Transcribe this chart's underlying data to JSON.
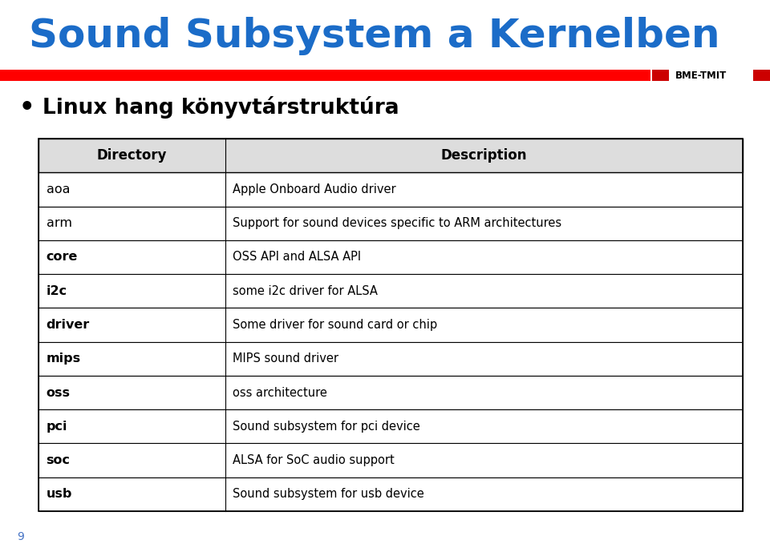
{
  "title": "Sound Subsystem a Kernelben",
  "title_color": "#1B6CC8",
  "subtitle": "Linux hang könyvtárstruktúra",
  "red_bar_color": "#FF0000",
  "bme_tmit_text": "BME-TMIT",
  "bme_tmit_color": "#000000",
  "bme_tmit_sq_color": "#CC0000",
  "page_number": "9",
  "page_number_color": "#4472C4",
  "table_header": [
    "Directory",
    "Description"
  ],
  "table_rows": [
    [
      "aoa",
      "Apple Onboard Audio driver"
    ],
    [
      "arm",
      "Support for sound devices specific to ARM architectures"
    ],
    [
      "core",
      "OSS API and ALSA API"
    ],
    [
      "i2c",
      "some i2c driver for ALSA"
    ],
    [
      "driver",
      "Some driver for sound card or chip"
    ],
    [
      "mips",
      "MIPS sound driver"
    ],
    [
      "oss",
      "oss architecture"
    ],
    [
      "pci",
      "Sound subsystem for pci device"
    ],
    [
      "soc",
      "ALSA for SoC audio support"
    ],
    [
      "usb",
      "Sound subsystem for usb device"
    ]
  ],
  "col1_bold_rows": [
    "core",
    "i2c",
    "driver",
    "mips",
    "oss",
    "pci",
    "soc",
    "usb"
  ],
  "bg_color": "#FFFFFF",
  "header_bg": "#DDDDDD"
}
